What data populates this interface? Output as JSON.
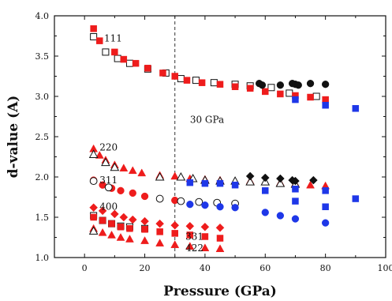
{
  "chart_data": {
    "type": "scatter",
    "xlabel": "Pressure (GPa)",
    "ylabel": "d-value (A)",
    "xlim": [
      -10,
      100
    ],
    "ylim": [
      1.0,
      4.0
    ],
    "xticks": [
      "0",
      "20",
      "40",
      "60",
      "80",
      "100"
    ],
    "yticks": [
      "1.0",
      "1.5",
      "2.0",
      "2.5",
      "3.0",
      "3.5",
      "4.0"
    ],
    "vline_x": 30,
    "annotations": [
      {
        "id": "a111",
        "text": "111",
        "x": 6.5,
        "y": 3.72
      },
      {
        "id": "a220",
        "text": "220",
        "x": 5,
        "y": 2.37
      },
      {
        "id": "a311",
        "text": "311",
        "x": 5,
        "y": 1.96
      },
      {
        "id": "a400",
        "text": "400",
        "x": 5,
        "y": 1.63
      },
      {
        "id": "a331",
        "text": "331",
        "x": 33.5,
        "y": 1.26
      },
      {
        "id": "a422",
        "text": "422",
        "x": 33.5,
        "y": 1.12
      },
      {
        "id": "a30gpa",
        "text": "30 GPa",
        "x": 35,
        "y": 2.71
      }
    ],
    "series": [
      {
        "id": "s111-open",
        "marker": "square",
        "fill": "none",
        "stroke": "#111111",
        "x": [
          3,
          7,
          11,
          15,
          21,
          27,
          32,
          37,
          43,
          50,
          55,
          62,
          68,
          77
        ],
        "y": [
          3.74,
          3.55,
          3.47,
          3.41,
          3.34,
          3.29,
          3.22,
          3.2,
          3.17,
          3.15,
          3.13,
          3.11,
          3.04,
          3.0
        ]
      },
      {
        "id": "s111-red",
        "marker": "square",
        "fill": "#ee1c1c",
        "x": [
          3,
          5,
          10,
          13,
          17,
          21,
          26,
          30,
          34,
          39,
          45,
          50,
          55,
          60,
          65,
          70,
          75,
          80
        ],
        "y": [
          3.84,
          3.69,
          3.55,
          3.46,
          3.41,
          3.35,
          3.29,
          3.25,
          3.2,
          3.17,
          3.15,
          3.12,
          3.1,
          3.06,
          3.03,
          3.01,
          2.99,
          2.96
        ]
      },
      {
        "id": "s111-black",
        "marker": "circle",
        "fill": "#111111",
        "x": [
          58,
          59,
          65,
          69,
          70,
          71,
          75,
          80
        ],
        "y": [
          3.16,
          3.14,
          3.14,
          3.16,
          3.15,
          3.14,
          3.16,
          3.15
        ]
      },
      {
        "id": "s111-blue",
        "marker": "square",
        "fill": "#1e37e8",
        "x": [
          70,
          80,
          90
        ],
        "y": [
          2.96,
          2.89,
          2.85
        ]
      },
      {
        "id": "s220-red",
        "marker": "triangle",
        "fill": "#ee1c1c",
        "x": [
          3,
          5,
          7,
          10,
          13,
          16,
          19,
          25,
          30,
          35,
          40,
          45,
          50,
          55,
          60,
          65,
          70,
          75,
          80
        ],
        "y": [
          2.35,
          2.27,
          2.21,
          2.15,
          2.11,
          2.08,
          2.05,
          2.02,
          2.01,
          1.98,
          1.97,
          1.96,
          1.95,
          1.95,
          1.94,
          1.93,
          1.92,
          1.9,
          1.89
        ]
      },
      {
        "id": "s220-open",
        "marker": "triangle",
        "fill": "none",
        "stroke": "#111111",
        "x": [
          3,
          7,
          10,
          25,
          32,
          36,
          40,
          45,
          50,
          55,
          60,
          65,
          70
        ],
        "y": [
          2.28,
          2.18,
          2.12,
          2.0,
          2.0,
          1.98,
          1.96,
          1.95,
          1.95,
          1.94,
          1.94,
          1.92,
          1.91
        ]
      },
      {
        "id": "s220-black",
        "marker": "diamond",
        "fill": "#111111",
        "x": [
          55,
          60,
          65,
          69,
          70,
          76
        ],
        "y": [
          2.01,
          1.99,
          1.98,
          1.96,
          1.95,
          1.96
        ]
      },
      {
        "id": "s220-blue",
        "marker": "square",
        "fill": "#1e37e8",
        "x": [
          35,
          40,
          45,
          50,
          60,
          70,
          80
        ],
        "y": [
          1.93,
          1.92,
          1.92,
          1.9,
          1.83,
          1.85,
          1.83
        ]
      },
      {
        "id": "s311-red",
        "marker": "circle",
        "fill": "#ee1c1c",
        "x": [
          3,
          6,
          9,
          12,
          16,
          20,
          25,
          30
        ],
        "y": [
          1.96,
          1.9,
          1.86,
          1.83,
          1.8,
          1.76,
          1.73,
          1.71
        ]
      },
      {
        "id": "s311-open",
        "marker": "circle",
        "fill": "none",
        "stroke": "#111111",
        "x": [
          3,
          8,
          25,
          32,
          38,
          44,
          50
        ],
        "y": [
          1.95,
          1.87,
          1.73,
          1.7,
          1.69,
          1.68,
          1.67
        ]
      },
      {
        "id": "s311-blue",
        "marker": "circle",
        "fill": "#1e37e8",
        "x": [
          35,
          40,
          45,
          50,
          60,
          65,
          70,
          80
        ],
        "y": [
          1.66,
          1.65,
          1.63,
          1.62,
          1.56,
          1.52,
          1.48,
          1.43
        ]
      },
      {
        "id": "s400-red",
        "marker": "diamond",
        "fill": "#ee1c1c",
        "x": [
          3,
          6,
          10,
          13,
          16,
          20,
          25,
          30,
          35,
          40,
          45
        ],
        "y": [
          1.62,
          1.58,
          1.54,
          1.5,
          1.47,
          1.45,
          1.42,
          1.4,
          1.39,
          1.38,
          1.37
        ]
      },
      {
        "id": "s400-open",
        "marker": "square",
        "fill": "none",
        "stroke": "#111111",
        "x": [
          3,
          6,
          9,
          12,
          15,
          20
        ],
        "y": [
          1.52,
          1.46,
          1.42,
          1.39,
          1.38,
          1.36
        ]
      },
      {
        "id": "s400-redsq",
        "marker": "square",
        "fill": "#ee1c1c",
        "x": [
          3,
          6,
          9,
          12,
          15,
          20,
          25,
          30,
          35,
          40,
          45
        ],
        "y": [
          1.5,
          1.46,
          1.42,
          1.38,
          1.36,
          1.35,
          1.32,
          1.3,
          1.28,
          1.26,
          1.24
        ]
      },
      {
        "id": "s400-blue",
        "marker": "square",
        "fill": "#1e37e8",
        "x": [
          70,
          80,
          90
        ],
        "y": [
          1.7,
          1.63,
          1.73
        ]
      },
      {
        "id": "s331-red",
        "marker": "triangle",
        "fill": "#ee1c1c",
        "x": [
          3,
          6,
          9,
          12,
          15,
          20,
          25,
          30,
          35,
          40,
          45
        ],
        "y": [
          1.36,
          1.31,
          1.28,
          1.25,
          1.23,
          1.21,
          1.18,
          1.16,
          1.14,
          1.12,
          1.11
        ]
      },
      {
        "id": "s331-open",
        "marker": "triangle",
        "fill": "none",
        "stroke": "#111111",
        "x": [
          3
        ],
        "y": [
          1.33
        ]
      }
    ]
  }
}
